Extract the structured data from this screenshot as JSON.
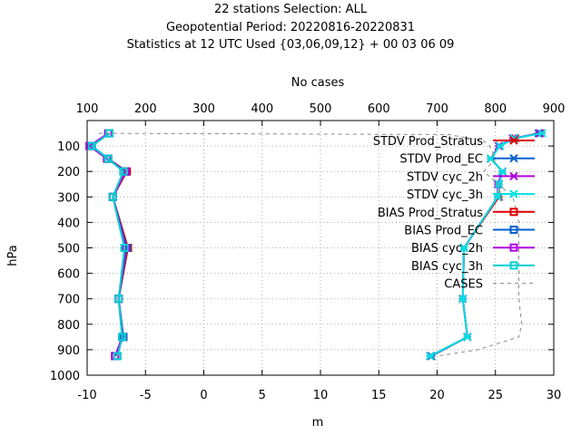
{
  "chart_data": {
    "type": "line",
    "title_lines": [
      "22 stations Selection: ALL",
      "Geopotential  Period: 20220816-20220831",
      "Statistics at 12 UTC  Used {03,06,09,12} + 00 03 06 09"
    ],
    "xlabel": "m",
    "ylabel": "hPa",
    "x2label": "No cases",
    "xlim": [
      -10,
      30
    ],
    "x2lim": [
      100,
      900
    ],
    "ylim": [
      1000,
      0
    ],
    "xticks": [
      -10,
      -5,
      0,
      5,
      10,
      15,
      20,
      25,
      30
    ],
    "x2ticks": [
      100,
      200,
      300,
      400,
      500,
      600,
      700,
      800,
      900
    ],
    "yticks": [
      100,
      200,
      300,
      400,
      500,
      600,
      700,
      800,
      900,
      1000
    ],
    "grid": true,
    "legend_position": "top-right",
    "series": [
      {
        "name": "STDV Prod_Stratus",
        "color": "#e00000",
        "marker": "x",
        "axis": "x",
        "points": [
          [
            28.8,
            50
          ],
          [
            26.7,
            70
          ],
          [
            25.3,
            100
          ],
          [
            24.6,
            150
          ],
          [
            25.6,
            200
          ],
          [
            25.3,
            250
          ],
          [
            25.3,
            300
          ],
          [
            22.3,
            500
          ],
          [
            22.2,
            700
          ],
          [
            22.6,
            850
          ],
          [
            19.5,
            925
          ]
        ]
      },
      {
        "name": "STDV Prod_EC",
        "color": "#0060d0",
        "marker": "x",
        "axis": "x",
        "points": [
          [
            28.7,
            50
          ],
          [
            26.6,
            70
          ],
          [
            25.3,
            100
          ],
          [
            24.6,
            150
          ],
          [
            25.6,
            200
          ],
          [
            25.3,
            250
          ],
          [
            25.2,
            300
          ],
          [
            22.3,
            500
          ],
          [
            22.2,
            700
          ],
          [
            22.6,
            850
          ],
          [
            19.5,
            925
          ]
        ]
      },
      {
        "name": "STDV cyc_2h",
        "color": "#b000e0",
        "marker": "x",
        "axis": "x",
        "points": [
          [
            28.8,
            50
          ],
          [
            26.5,
            70
          ],
          [
            25.3,
            100
          ],
          [
            24.6,
            150
          ],
          [
            25.6,
            200
          ],
          [
            25.2,
            250
          ],
          [
            25.2,
            300
          ],
          [
            22.3,
            500
          ],
          [
            22.2,
            700
          ],
          [
            22.6,
            850
          ],
          [
            19.4,
            925
          ]
        ]
      },
      {
        "name": "STDV cyc_3h",
        "color": "#00e0e0",
        "marker": "x",
        "axis": "x",
        "points": [
          [
            29.0,
            50
          ],
          [
            26.6,
            70
          ],
          [
            25.4,
            100
          ],
          [
            24.6,
            150
          ],
          [
            25.6,
            200
          ],
          [
            25.3,
            250
          ],
          [
            25.2,
            300
          ],
          [
            22.3,
            500
          ],
          [
            22.2,
            700
          ],
          [
            22.6,
            850
          ],
          [
            19.4,
            925
          ]
        ]
      },
      {
        "name": "BIAS Prod_Stratus",
        "color": "#e00000",
        "marker": "square",
        "axis": "x",
        "points": [
          [
            -8.1,
            50
          ],
          [
            -9.6,
            100
          ],
          [
            -8.2,
            150
          ],
          [
            -6.6,
            200
          ],
          [
            -7.8,
            300
          ],
          [
            -6.5,
            500
          ],
          [
            -7.3,
            700
          ],
          [
            -6.9,
            850
          ],
          [
            -7.6,
            925
          ]
        ]
      },
      {
        "name": "BIAS Prod_EC",
        "color": "#0060d0",
        "marker": "square",
        "axis": "x",
        "points": [
          [
            -8.1,
            50
          ],
          [
            -9.6,
            100
          ],
          [
            -8.2,
            150
          ],
          [
            -6.7,
            200
          ],
          [
            -7.8,
            300
          ],
          [
            -6.6,
            500
          ],
          [
            -7.3,
            700
          ],
          [
            -6.9,
            850
          ],
          [
            -7.6,
            925
          ]
        ]
      },
      {
        "name": "BIAS cyc_2h",
        "color": "#b000e0",
        "marker": "square",
        "axis": "x",
        "points": [
          [
            -8.2,
            50
          ],
          [
            -9.8,
            100
          ],
          [
            -8.3,
            150
          ],
          [
            -6.7,
            200
          ],
          [
            -7.8,
            300
          ],
          [
            -6.7,
            500
          ],
          [
            -7.3,
            700
          ],
          [
            -7.0,
            850
          ],
          [
            -7.6,
            925
          ]
        ]
      },
      {
        "name": "BIAS cyc_3h",
        "color": "#00d0d0",
        "marker": "square",
        "axis": "x",
        "points": [
          [
            -8.1,
            50
          ],
          [
            -9.6,
            100
          ],
          [
            -8.2,
            150
          ],
          [
            -6.9,
            200
          ],
          [
            -7.8,
            300
          ],
          [
            -6.8,
            500
          ],
          [
            -7.3,
            700
          ],
          [
            -7.0,
            850
          ],
          [
            -7.4,
            925
          ]
        ]
      },
      {
        "name": "CASES",
        "color": "#888888",
        "marker": "none",
        "dashed": true,
        "axis": "x2",
        "points": [
          [
            120,
            50
          ],
          [
            720,
            55
          ],
          [
            780,
            80
          ],
          [
            790,
            100
          ],
          [
            800,
            150
          ],
          [
            780,
            200
          ],
          [
            830,
            300
          ],
          [
            840,
            400
          ],
          [
            840,
            500
          ],
          [
            840,
            600
          ],
          [
            840,
            700
          ],
          [
            845,
            800
          ],
          [
            840,
            850
          ],
          [
            770,
            900
          ],
          [
            700,
            925
          ]
        ]
      }
    ]
  }
}
